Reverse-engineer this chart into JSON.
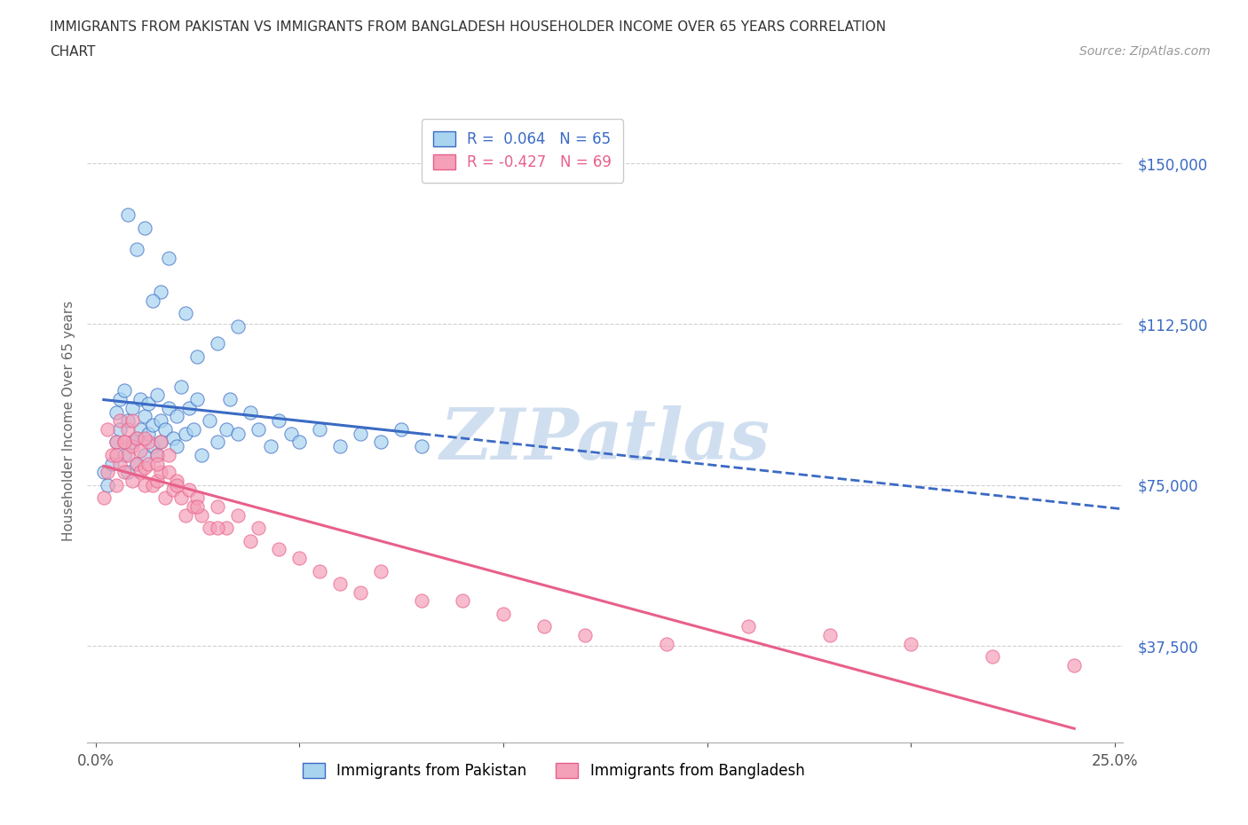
{
  "title_line1": "IMMIGRANTS FROM PAKISTAN VS IMMIGRANTS FROM BANGLADESH HOUSEHOLDER INCOME OVER 65 YEARS CORRELATION",
  "title_line2": "CHART",
  "source_text": "Source: ZipAtlas.com",
  "ylabel": "Householder Income Over 65 years",
  "legend_pakistan": "Immigrants from Pakistan",
  "legend_bangladesh": "Immigrants from Bangladesh",
  "R_pakistan": 0.064,
  "N_pakistan": 65,
  "R_bangladesh": -0.427,
  "N_bangladesh": 69,
  "xlim": [
    -0.002,
    0.252
  ],
  "ylim": [
    15000,
    165000
  ],
  "xticks": [
    0.0,
    0.05,
    0.1,
    0.15,
    0.2,
    0.25
  ],
  "xticklabels": [
    "0.0%",
    "",
    "",
    "",
    "",
    "25.0%"
  ],
  "ytick_values": [
    37500,
    75000,
    112500,
    150000
  ],
  "ytick_labels": [
    "$37,500",
    "$75,000",
    "$112,500",
    "$150,000"
  ],
  "color_pakistan": "#A8D4F0",
  "color_bangladesh": "#F4A0B8",
  "trendline_pakistan": "#3B6AC4",
  "trendline_bangladesh": "#E8608A",
  "background_color": "#FFFFFF",
  "grid_color": "#CCCCCC",
  "watermark_text": "ZIPatlas",
  "watermark_color": "#D0DFF0",
  "pakistan_x": [
    0.002,
    0.003,
    0.004,
    0.005,
    0.005,
    0.006,
    0.006,
    0.007,
    0.007,
    0.008,
    0.008,
    0.009,
    0.009,
    0.01,
    0.01,
    0.011,
    0.011,
    0.012,
    0.012,
    0.013,
    0.013,
    0.014,
    0.014,
    0.015,
    0.015,
    0.016,
    0.016,
    0.017,
    0.018,
    0.019,
    0.02,
    0.02,
    0.021,
    0.022,
    0.023,
    0.024,
    0.025,
    0.026,
    0.028,
    0.03,
    0.032,
    0.033,
    0.035,
    0.038,
    0.04,
    0.043,
    0.045,
    0.048,
    0.05,
    0.055,
    0.06,
    0.065,
    0.07,
    0.075,
    0.08,
    0.025,
    0.03,
    0.035,
    0.022,
    0.018,
    0.016,
    0.014,
    0.012,
    0.01,
    0.008
  ],
  "pakistan_y": [
    78000,
    75000,
    80000,
    85000,
    92000,
    88000,
    95000,
    82000,
    97000,
    78000,
    90000,
    85000,
    93000,
    80000,
    86000,
    95000,
    88000,
    82000,
    91000,
    87000,
    94000,
    84000,
    89000,
    96000,
    82000,
    90000,
    85000,
    88000,
    93000,
    86000,
    91000,
    84000,
    98000,
    87000,
    93000,
    88000,
    95000,
    82000,
    90000,
    85000,
    88000,
    95000,
    87000,
    92000,
    88000,
    84000,
    90000,
    87000,
    85000,
    88000,
    84000,
    87000,
    85000,
    88000,
    84000,
    105000,
    108000,
    112000,
    115000,
    128000,
    120000,
    118000,
    135000,
    130000,
    138000
  ],
  "bangladesh_x": [
    0.002,
    0.003,
    0.004,
    0.005,
    0.005,
    0.006,
    0.006,
    0.007,
    0.007,
    0.008,
    0.008,
    0.009,
    0.009,
    0.01,
    0.01,
    0.011,
    0.011,
    0.012,
    0.012,
    0.013,
    0.013,
    0.014,
    0.015,
    0.015,
    0.016,
    0.016,
    0.017,
    0.018,
    0.018,
    0.019,
    0.02,
    0.021,
    0.022,
    0.023,
    0.024,
    0.025,
    0.026,
    0.028,
    0.03,
    0.032,
    0.035,
    0.038,
    0.04,
    0.045,
    0.05,
    0.055,
    0.06,
    0.065,
    0.07,
    0.08,
    0.09,
    0.1,
    0.11,
    0.12,
    0.14,
    0.16,
    0.18,
    0.2,
    0.22,
    0.24,
    0.003,
    0.005,
    0.007,
    0.009,
    0.012,
    0.015,
    0.02,
    0.025,
    0.03
  ],
  "bangladesh_y": [
    72000,
    78000,
    82000,
    75000,
    85000,
    80000,
    90000,
    85000,
    78000,
    82000,
    88000,
    76000,
    84000,
    80000,
    86000,
    78000,
    83000,
    75000,
    79000,
    85000,
    80000,
    75000,
    82000,
    76000,
    78000,
    85000,
    72000,
    78000,
    82000,
    74000,
    76000,
    72000,
    68000,
    74000,
    70000,
    72000,
    68000,
    65000,
    70000,
    65000,
    68000,
    62000,
    65000,
    60000,
    58000,
    55000,
    52000,
    50000,
    55000,
    48000,
    48000,
    45000,
    42000,
    40000,
    38000,
    42000,
    40000,
    38000,
    35000,
    33000,
    88000,
    82000,
    85000,
    90000,
    86000,
    80000,
    75000,
    70000,
    65000
  ]
}
